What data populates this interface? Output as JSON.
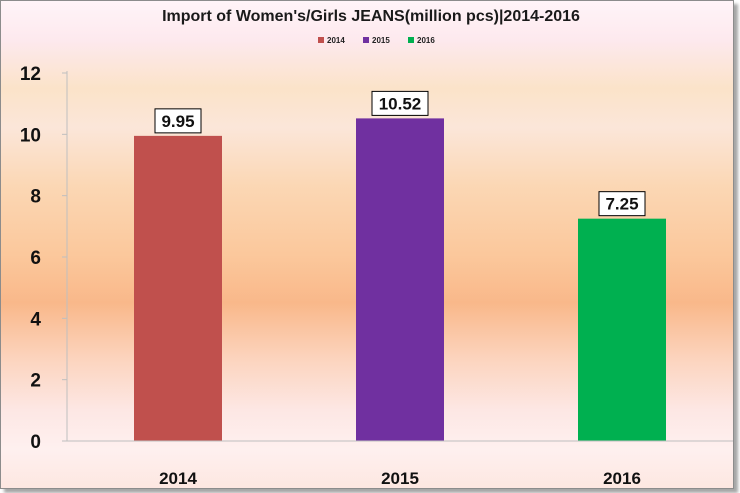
{
  "chart_data": {
    "type": "bar",
    "title": "Import of Women's/Girls JEANS(million pcs)|2014-2016",
    "categories": [
      "2014",
      "2015",
      "2016"
    ],
    "values": [
      9.95,
      10.52,
      7.25
    ],
    "value_labels": [
      "9.95",
      "10.52",
      "7.25"
    ],
    "colors": [
      "#c0504d",
      "#7030a0",
      "#00b050"
    ],
    "legend": [
      "2014",
      "2015",
      "2016"
    ],
    "legend_position": "top",
    "ylim": [
      0,
      12
    ],
    "yticks": [
      0,
      2,
      4,
      6,
      8,
      10,
      12
    ],
    "grid": false
  }
}
